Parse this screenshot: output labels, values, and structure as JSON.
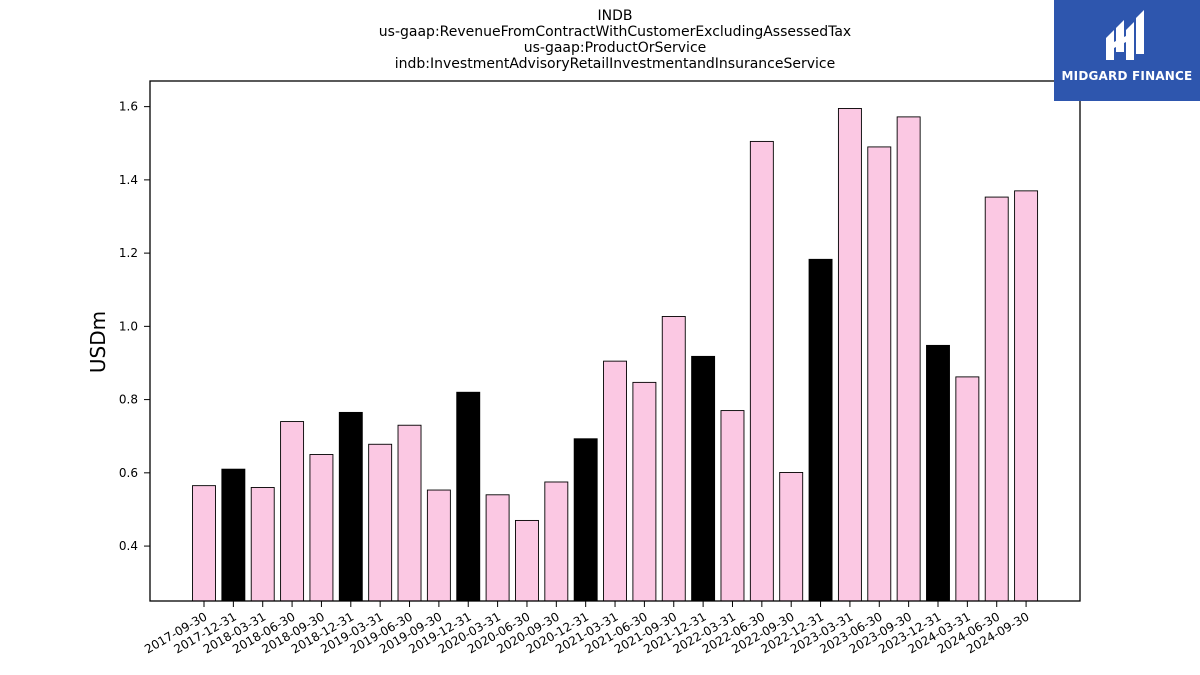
{
  "chart_data": {
    "type": "bar",
    "title_lines": [
      "INDB",
      "us-gaap:RevenueFromContractWithCustomerExcludingAssessedTax",
      "us-gaap:ProductOrService",
      "indb:InvestmentAdvisoryRetailInvestmentandInsuranceService"
    ],
    "ylabel": "USDm",
    "xlabel": "",
    "ylim": [
      0.25,
      1.67
    ],
    "yticks": [
      0.4,
      0.6,
      0.8,
      1.0,
      1.2,
      1.4,
      1.6
    ],
    "ytick_labels": [
      "0.4",
      "0.6",
      "0.8",
      "1.0",
      "1.2",
      "1.4",
      "1.6"
    ],
    "categories": [
      "2017-09-30",
      "2017-12-31",
      "2018-03-31",
      "2018-06-30",
      "2018-09-30",
      "2018-12-31",
      "2019-03-31",
      "2019-06-30",
      "2019-09-30",
      "2019-12-31",
      "2020-03-31",
      "2020-06-30",
      "2020-09-30",
      "2020-12-31",
      "2021-03-31",
      "2021-06-30",
      "2021-09-30",
      "2021-12-31",
      "2022-03-31",
      "2022-06-30",
      "2022-09-30",
      "2022-12-31",
      "2023-03-31",
      "2023-06-30",
      "2023-09-30",
      "2023-12-31",
      "2024-03-31",
      "2024-06-30",
      "2024-09-30"
    ],
    "values": [
      0.565,
      0.61,
      0.56,
      0.74,
      0.65,
      0.765,
      0.678,
      0.73,
      0.553,
      0.82,
      0.54,
      0.47,
      0.575,
      0.693,
      0.905,
      0.847,
      1.027,
      0.918,
      0.77,
      1.505,
      0.601,
      1.183,
      1.595,
      1.49,
      1.572,
      0.948,
      0.862,
      1.353,
      1.37
    ],
    "bar_colors": [
      "#fbc8e3",
      "#000000",
      "#fbc8e3",
      "#fbc8e3",
      "#fbc8e3",
      "#000000",
      "#fbc8e3",
      "#fbc8e3",
      "#fbc8e3",
      "#000000",
      "#fbc8e3",
      "#fbc8e3",
      "#fbc8e3",
      "#000000",
      "#fbc8e3",
      "#fbc8e3",
      "#fbc8e3",
      "#000000",
      "#fbc8e3",
      "#fbc8e3",
      "#fbc8e3",
      "#000000",
      "#fbc8e3",
      "#fbc8e3",
      "#fbc8e3",
      "#000000",
      "#fbc8e3",
      "#fbc8e3",
      "#fbc8e3"
    ],
    "grid": false,
    "legend": "none"
  },
  "logo": {
    "text": "MIDGARD FINANCE",
    "background": "#2e56ae"
  }
}
